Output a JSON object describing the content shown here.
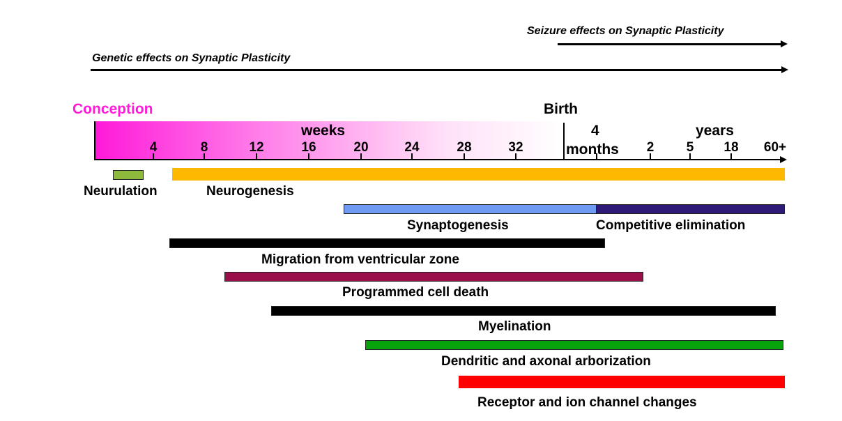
{
  "arrows": {
    "seizure": "Seizure effects on Synaptic Plasticity",
    "genetic": "Genetic effects on Synaptic Plasticity"
  },
  "timeline": {
    "conception": "Conception",
    "birth": "Birth",
    "weeks_label": "weeks",
    "years_label": "years",
    "months_number": "4",
    "months_label": "months",
    "week_ticks": [
      "4",
      "8",
      "12",
      "16",
      "20",
      "24",
      "28",
      "32"
    ],
    "year_ticks": [
      "2",
      "5",
      "18",
      "60+"
    ],
    "gradient_start_color": "#ff1ad9",
    "gradient_end_color": "#ffffff"
  },
  "processes": {
    "neurulation": {
      "label": "Neurulation",
      "color": "#8db93c"
    },
    "neurogenesis": {
      "label": "Neurogenesis",
      "color": "#ffb800"
    },
    "synaptogenesis": {
      "label": "Synaptogenesis",
      "color": "#6f9cf2"
    },
    "competitive_elimination": {
      "label": "Competitive elimination",
      "color": "#2f1a77"
    },
    "migration": {
      "label": "Migration from ventricular zone",
      "color": "#000000"
    },
    "cell_death": {
      "label": "Programmed cell death",
      "color": "#9a0f4a"
    },
    "myelination": {
      "label": "Myelination",
      "color": "#000000"
    },
    "arborization": {
      "label": "Dendritic and axonal arborization",
      "color": "#08a30c"
    },
    "receptor": {
      "label": "Receptor and ion channel changes",
      "color": "#ff0000"
    }
  }
}
